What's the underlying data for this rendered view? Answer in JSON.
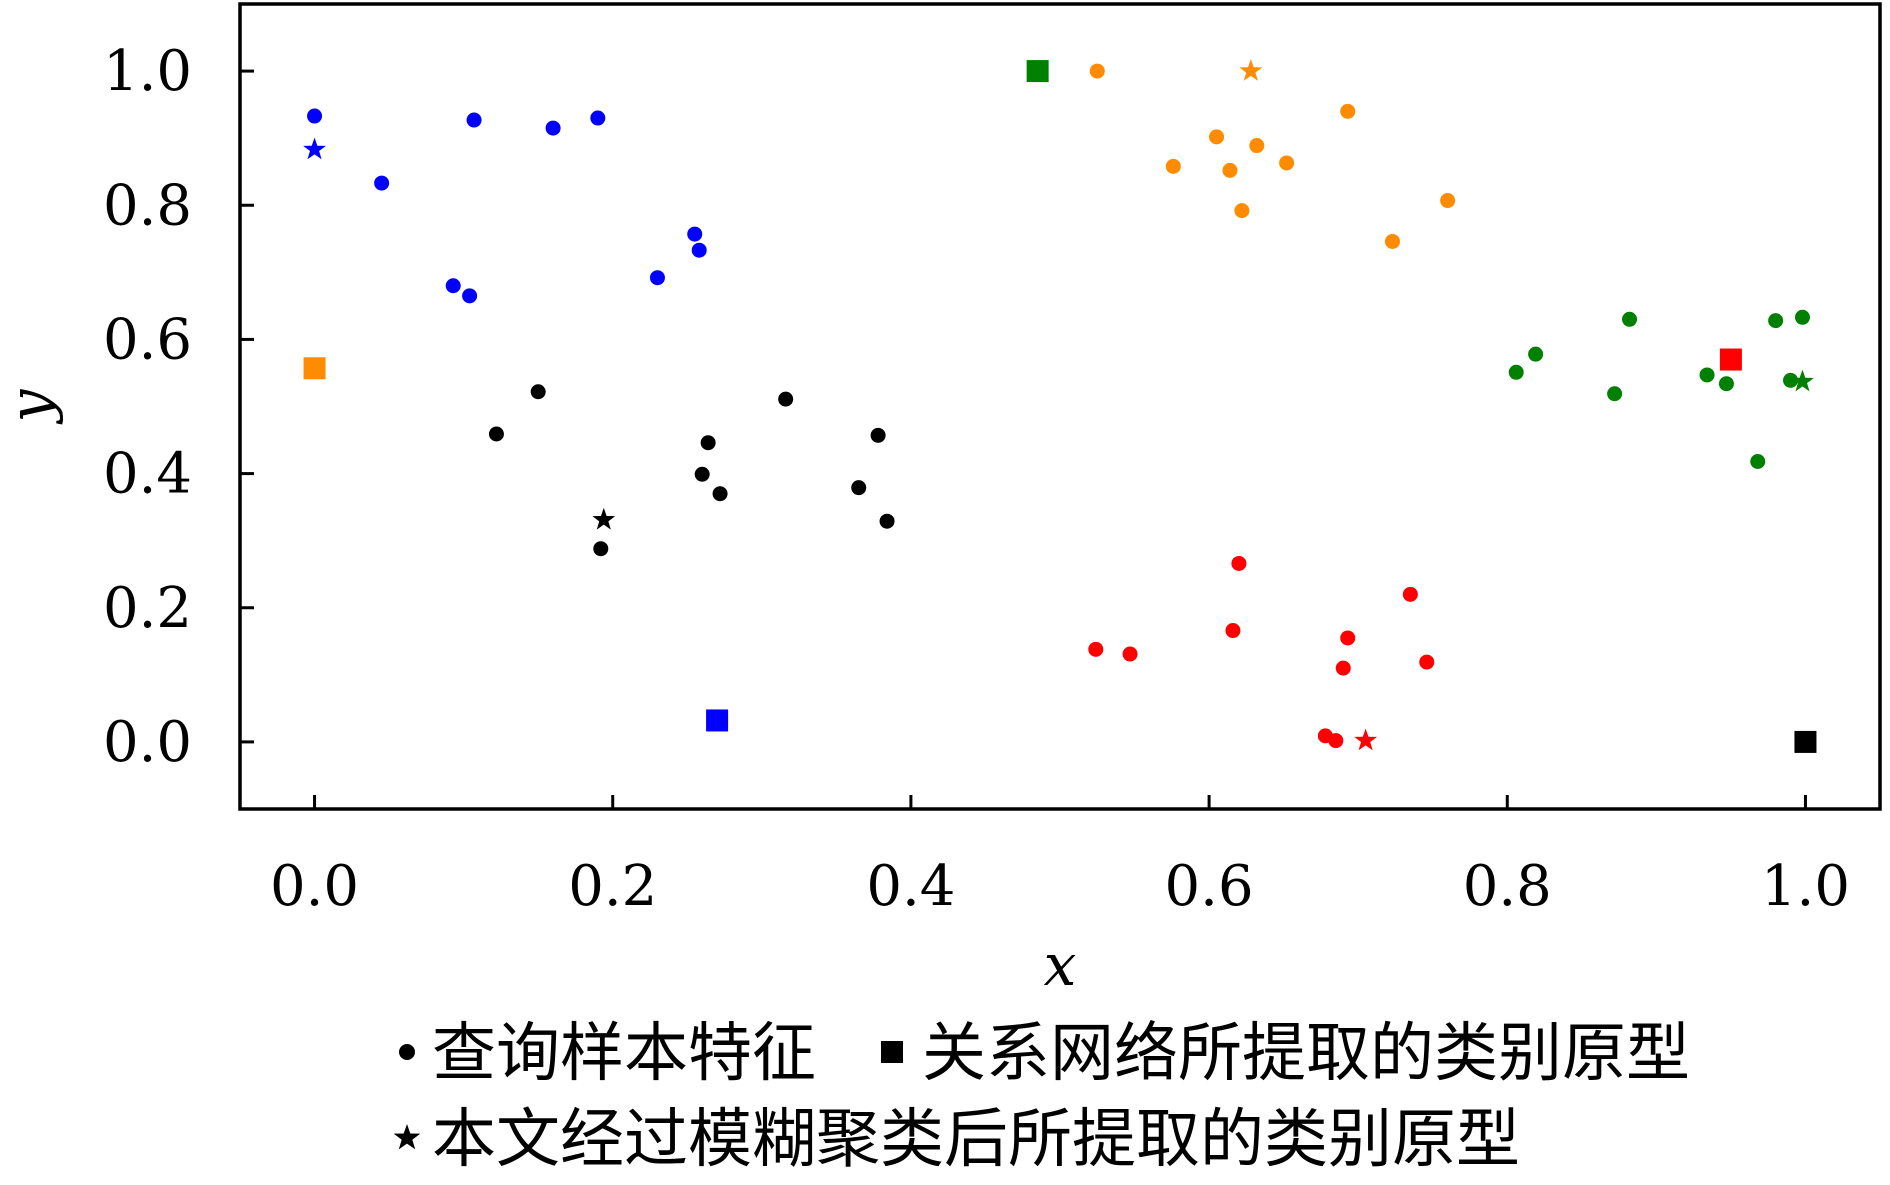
{
  "chart_data": {
    "type": "scatter",
    "xlabel": "x",
    "ylabel": "y",
    "xlim": [
      -0.05,
      1.05
    ],
    "ylim": [
      -0.1,
      1.1
    ],
    "xticks": [
      "0.0",
      "0.2",
      "0.4",
      "0.6",
      "0.8",
      "1.0"
    ],
    "yticks": [
      "0.0",
      "0.2",
      "0.4",
      "0.6",
      "0.8",
      "1.0"
    ],
    "grid": false,
    "legend_placement": "bottom",
    "marker_legend": [
      {
        "marker": "circle",
        "label": "查询样本特征"
      },
      {
        "marker": "square",
        "label": "关系网络所提取的类别原型"
      },
      {
        "marker": "star",
        "label": "本文经过模糊聚类后所提取的类别原型"
      }
    ],
    "series": [
      {
        "color": "#0000ff",
        "points": [
          [
            0.0,
            0.933
          ],
          [
            0.107,
            0.927
          ],
          [
            0.16,
            0.915
          ],
          [
            0.19,
            0.93
          ],
          [
            0.045,
            0.833
          ],
          [
            0.255,
            0.757
          ],
          [
            0.258,
            0.733
          ],
          [
            0.23,
            0.692
          ],
          [
            0.093,
            0.68
          ],
          [
            0.104,
            0.665
          ]
        ],
        "square": [
          0.27,
          0.032
        ],
        "star": [
          0.0,
          0.883
        ]
      },
      {
        "color": "#ff8c00",
        "points": [
          [
            0.525,
            1.0
          ],
          [
            0.693,
            0.94
          ],
          [
            0.605,
            0.902
          ],
          [
            0.632,
            0.889
          ],
          [
            0.576,
            0.858
          ],
          [
            0.614,
            0.852
          ],
          [
            0.652,
            0.863
          ],
          [
            0.76,
            0.807
          ],
          [
            0.622,
            0.792
          ],
          [
            0.723,
            0.746
          ]
        ],
        "square": [
          0.0,
          0.557
        ],
        "star": [
          0.628,
          1.0
        ]
      },
      {
        "color": "#000000",
        "points": [
          [
            0.15,
            0.522
          ],
          [
            0.316,
            0.511
          ],
          [
            0.122,
            0.459
          ],
          [
            0.378,
            0.457
          ],
          [
            0.264,
            0.446
          ],
          [
            0.26,
            0.399
          ],
          [
            0.272,
            0.37
          ],
          [
            0.365,
            0.379
          ],
          [
            0.384,
            0.329
          ],
          [
            0.192,
            0.288
          ]
        ],
        "square": [
          1.0,
          0.0
        ],
        "star": [
          0.194,
          0.331
        ]
      },
      {
        "color": "#008000",
        "points": [
          [
            0.882,
            0.63
          ],
          [
            0.998,
            0.633
          ],
          [
            0.98,
            0.628
          ],
          [
            0.819,
            0.578
          ],
          [
            0.806,
            0.551
          ],
          [
            0.934,
            0.547
          ],
          [
            0.947,
            0.534
          ],
          [
            0.99,
            0.539
          ],
          [
            0.872,
            0.519
          ],
          [
            0.968,
            0.418
          ]
        ],
        "square": [
          0.485,
          1.0
        ],
        "star": [
          0.998,
          0.537
        ]
      },
      {
        "color": "#ff0000",
        "points": [
          [
            0.62,
            0.266
          ],
          [
            0.735,
            0.22
          ],
          [
            0.616,
            0.166
          ],
          [
            0.693,
            0.155
          ],
          [
            0.524,
            0.138
          ],
          [
            0.547,
            0.131
          ],
          [
            0.746,
            0.119
          ],
          [
            0.69,
            0.11
          ],
          [
            0.678,
            0.009
          ],
          [
            0.685,
            0.002
          ]
        ],
        "square": [
          0.95,
          0.57
        ],
        "star": [
          0.705,
          0.002
        ]
      }
    ]
  }
}
